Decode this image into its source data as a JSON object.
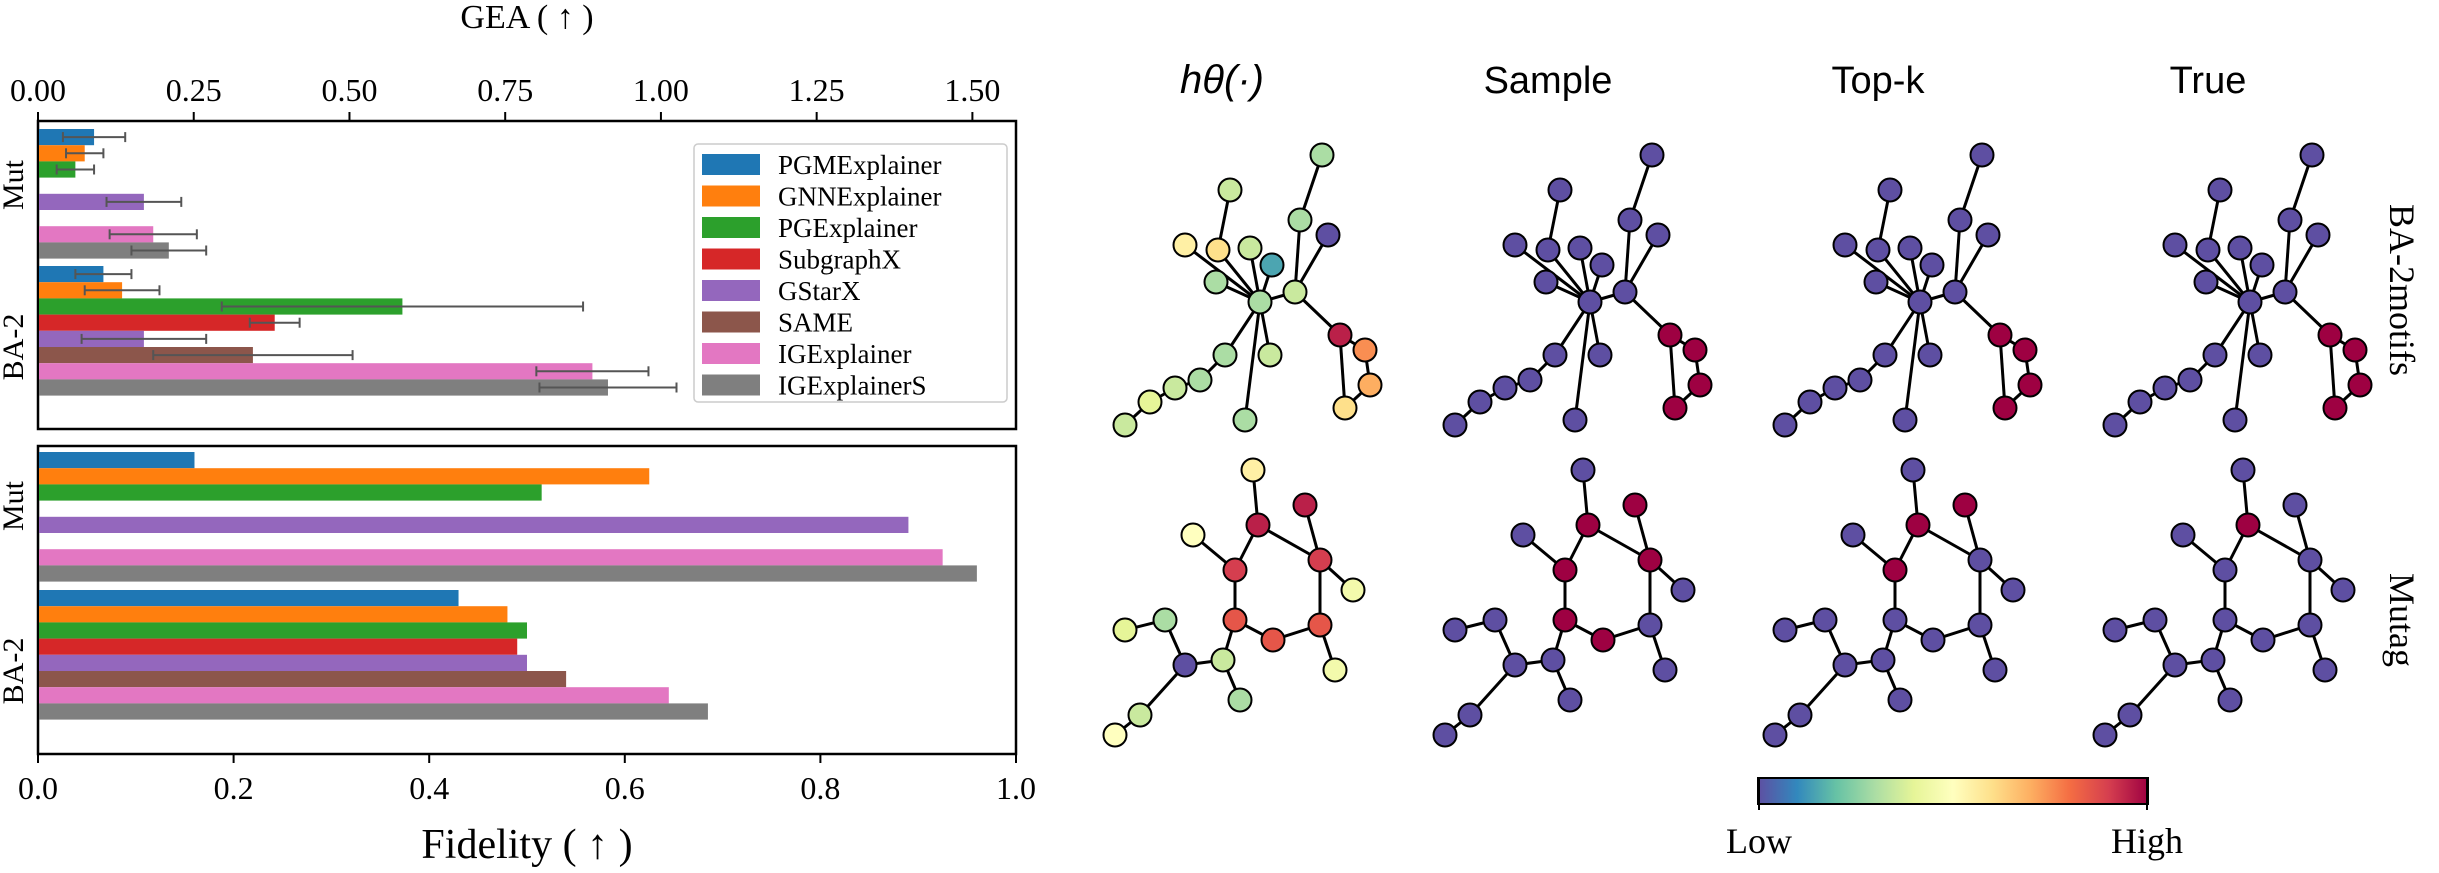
{
  "chart_data": [
    {
      "type": "bar",
      "orientation": "horizontal",
      "panel": "top",
      "title": "",
      "xlabel": "GEA ( ↑ )",
      "xlim": [
        0,
        1.57
      ],
      "xticks": [
        "0.00",
        "0.25",
        "0.50",
        "0.75",
        "1.00",
        "1.25",
        "1.50"
      ],
      "xtick_values": [
        0,
        0.25,
        0.5,
        0.75,
        1.0,
        1.25,
        1.5
      ],
      "groups": [
        "Mut",
        "BA-2"
      ],
      "series": [
        {
          "name": "PGMExplainer",
          "values": [
            0.09,
            0.105
          ],
          "errors": [
            0.05,
            0.045
          ]
        },
        {
          "name": "GNNExplainer",
          "values": [
            0.075,
            0.135
          ],
          "errors": [
            0.03,
            0.06
          ]
        },
        {
          "name": "PGExplainer",
          "values": [
            0.06,
            0.585
          ],
          "errors": [
            0.03,
            0.29
          ]
        },
        {
          "name": "SubgraphX",
          "values": [
            null,
            0.38
          ],
          "errors": [
            null,
            0.04
          ]
        },
        {
          "name": "GStarX",
          "values": [
            0.17,
            0.17
          ],
          "errors": [
            0.06,
            0.1
          ]
        },
        {
          "name": "SAME",
          "values": [
            null,
            0.345
          ],
          "errors": [
            null,
            0.16
          ]
        },
        {
          "name": "IGExplainer",
          "values": [
            0.185,
            0.89
          ],
          "errors": [
            0.07,
            0.09
          ]
        },
        {
          "name": "IGExplainerS",
          "values": [
            0.21,
            0.915
          ],
          "errors": [
            0.06,
            0.11
          ]
        }
      ],
      "legend": {
        "placement": "right",
        "entries": [
          "PGMExplainer",
          "GNNExplainer",
          "PGExplainer",
          "SubgraphX",
          "GStarX",
          "SAME",
          "IGExplainer",
          "IGExplainerS"
        ]
      }
    },
    {
      "type": "bar",
      "orientation": "horizontal",
      "panel": "bottom",
      "title": "",
      "xlabel": "Fidelity ( ↑ )",
      "xlim": [
        0,
        1.0
      ],
      "xticks": [
        "0.0",
        "0.2",
        "0.4",
        "0.6",
        "0.8",
        "1.0"
      ],
      "xtick_values": [
        0,
        0.2,
        0.4,
        0.6,
        0.8,
        1.0
      ],
      "groups": [
        "Mut",
        "BA-2"
      ],
      "series": [
        {
          "name": "PGMExplainer",
          "values": [
            0.16,
            0.43
          ]
        },
        {
          "name": "GNNExplainer",
          "values": [
            0.625,
            0.48
          ]
        },
        {
          "name": "PGExplainer",
          "values": [
            0.515,
            0.5
          ]
        },
        {
          "name": "SubgraphX",
          "values": [
            null,
            0.49
          ]
        },
        {
          "name": "GStarX",
          "values": [
            0.89,
            0.5
          ]
        },
        {
          "name": "SAME",
          "values": [
            null,
            0.54
          ]
        },
        {
          "name": "IGExplainer",
          "values": [
            0.925,
            0.645
          ]
        },
        {
          "name": "IGExplainerS",
          "values": [
            0.96,
            0.685
          ]
        }
      ]
    }
  ],
  "colors": {
    "PGMExplainer": "#1f77b4",
    "GNNExplainer": "#ff7f0e",
    "PGExplainer": "#2ca02c",
    "SubgraphX": "#d62728",
    "GStarX": "#9467bd",
    "SAME": "#8c564b",
    "IGExplainer": "#e377c2",
    "IGExplainerS": "#7f7f7f",
    "error_bar": "#555555"
  },
  "graphs": {
    "column_titles": [
      "hθ(·)",
      "Sample",
      "Top-k",
      "True"
    ],
    "row_labels": [
      "BA-2motifs",
      "Mutag"
    ],
    "colorbar": {
      "low_label": "Low",
      "high_label": "High",
      "colormap": "Spectral_r"
    },
    "rows": [
      {
        "name": "BA-2motifs",
        "node_values": [
          [
            0.35,
            0.3,
            0.55,
            0.6,
            0.35,
            0.15,
            0.3,
            0.3,
            0.35,
            0.3,
            0.0,
            0.35,
            0.3,
            0.3,
            0.3,
            0.35,
            0.4,
            0.35,
            0.95,
            0.75,
            0.7,
            0.6
          ],
          [
            0,
            0,
            0,
            0,
            0,
            0,
            0,
            0,
            0,
            0,
            0,
            0,
            0,
            0,
            0,
            0,
            0,
            0,
            1,
            1,
            1,
            1
          ],
          [
            0,
            0,
            0,
            0,
            0,
            0,
            0,
            0,
            0,
            0,
            0,
            0,
            0,
            0,
            0,
            0,
            0,
            0,
            1,
            1,
            1,
            1
          ],
          [
            0,
            0,
            0,
            0,
            0,
            0,
            0,
            0,
            0,
            0,
            0,
            0,
            0,
            0,
            0,
            0,
            0,
            0,
            1,
            1,
            1,
            1
          ]
        ]
      },
      {
        "name": "Mutag",
        "node_values": [
          [
            0.55,
            0.5,
            0.95,
            0.95,
            0.9,
            0.9,
            0.85,
            0.85,
            0.85,
            0.45,
            0.45,
            0.3,
            0.0,
            0.35,
            0.4,
            0.35,
            0.3,
            0.5
          ],
          [
            0,
            0,
            1,
            1,
            1,
            1,
            1,
            1,
            0,
            0,
            0,
            0,
            0,
            0,
            0,
            0,
            0,
            0
          ],
          [
            0,
            0,
            1,
            1,
            1,
            0,
            0,
            0,
            0,
            0,
            0,
            0,
            0,
            0,
            0,
            0,
            0,
            0
          ],
          [
            0,
            0,
            1,
            0,
            0,
            0,
            0,
            0,
            0,
            0,
            0,
            0,
            0,
            0,
            0,
            0,
            0,
            0
          ]
        ]
      }
    ]
  }
}
